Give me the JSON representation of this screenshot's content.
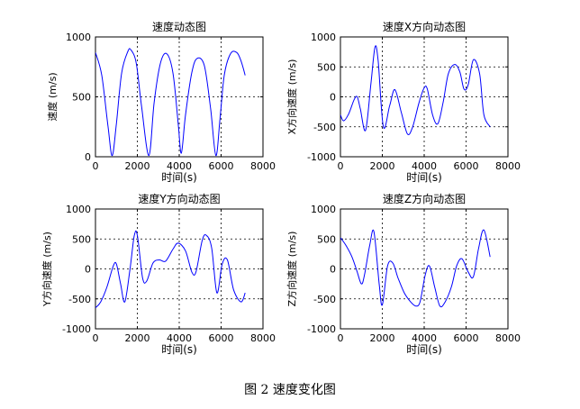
{
  "caption": "图 2  速度变化图",
  "chart_data": [
    {
      "type": "line",
      "title": "速度动态图",
      "xlabel": "时间(s)",
      "ylabel": "速度 (m/s)",
      "xlim": [
        0,
        8000
      ],
      "ylim": [
        0,
        1000
      ],
      "xticks": [
        0,
        2000,
        4000,
        6000,
        8000
      ],
      "yticks": [
        0,
        500,
        1000
      ],
      "grid": true,
      "line_color": "#0000ff",
      "x": [
        0,
        300,
        600,
        800,
        1000,
        1250,
        1550,
        1700,
        1950,
        2200,
        2550,
        2800,
        3100,
        3400,
        3700,
        3950,
        4100,
        4300,
        4600,
        4850,
        5200,
        5500,
        5750,
        5950,
        6150,
        6450,
        6750,
        6950,
        7150
      ],
      "values": [
        870,
        680,
        250,
        10,
        280,
        700,
        880,
        890,
        780,
        420,
        10,
        450,
        780,
        860,
        700,
        280,
        30,
        350,
        700,
        820,
        760,
        400,
        10,
        320,
        680,
        860,
        870,
        800,
        680
      ]
    },
    {
      "type": "line",
      "title": "速度X方向动态图",
      "xlabel": "时间(s)",
      "ylabel": "X方向速度 (m/s)",
      "xlim": [
        0,
        8000
      ],
      "ylim": [
        -1000,
        1000
      ],
      "xticks": [
        0,
        2000,
        4000,
        6000,
        8000
      ],
      "yticks": [
        -1000,
        -500,
        0,
        500,
        1000
      ],
      "grid": true,
      "line_color": "#0000ff",
      "x": [
        0,
        150,
        400,
        650,
        800,
        950,
        1200,
        1450,
        1650,
        1800,
        2050,
        2350,
        2600,
        2900,
        3200,
        3450,
        3750,
        4000,
        4150,
        4400,
        4650,
        4900,
        5150,
        5450,
        5700,
        5900,
        6100,
        6350,
        6650,
        6850,
        7150
      ],
      "values": [
        -300,
        -400,
        -280,
        -50,
        0,
        -200,
        -560,
        200,
        830,
        600,
        -500,
        -150,
        120,
        -250,
        -620,
        -500,
        -100,
        150,
        130,
        -300,
        -450,
        -100,
        380,
        540,
        420,
        130,
        200,
        620,
        380,
        -300,
        -500
      ]
    },
    {
      "type": "line",
      "title": "速度Y方向动态图",
      "xlabel": "时间(s)",
      "ylabel": "Y方向速度 (m/s)",
      "xlim": [
        0,
        8000
      ],
      "ylim": [
        -1000,
        1000
      ],
      "xticks": [
        0,
        2000,
        4000,
        6000,
        8000
      ],
      "yticks": [
        -1000,
        -500,
        0,
        500,
        1000
      ],
      "grid": true,
      "line_color": "#0000ff",
      "x": [
        0,
        250,
        550,
        850,
        1000,
        1200,
        1400,
        1650,
        1850,
        2000,
        2250,
        2450,
        2750,
        3050,
        3350,
        3700,
        3950,
        4300,
        4600,
        4800,
        5100,
        5300,
        5550,
        5800,
        6050,
        6300,
        6600,
        6950,
        7150
      ],
      "values": [
        -650,
        -550,
        -300,
        50,
        80,
        -250,
        -550,
        0,
        550,
        560,
        -150,
        -200,
        100,
        150,
        130,
        330,
        430,
        300,
        -50,
        -50,
        480,
        560,
        350,
        -400,
        80,
        150,
        -350,
        -550,
        -400
      ]
    },
    {
      "type": "line",
      "title": "速度Z方向动态图",
      "xlabel": "时间(s)",
      "ylabel": "Z方向速度 (m/s)",
      "xlim": [
        0,
        8000
      ],
      "ylim": [
        -1000,
        1000
      ],
      "xticks": [
        0,
        2000,
        4000,
        6000,
        8000
      ],
      "yticks": [
        -1000,
        -500,
        0,
        500,
        1000
      ],
      "grid": true,
      "line_color": "#0000ff",
      "x": [
        0,
        250,
        550,
        800,
        1000,
        1150,
        1400,
        1600,
        1850,
        2000,
        2250,
        2500,
        2750,
        3050,
        3350,
        3600,
        3800,
        4050,
        4250,
        4500,
        4750,
        5000,
        5300,
        5550,
        5800,
        6100,
        6350,
        6600,
        6850,
        7150
      ],
      "values": [
        520,
        400,
        200,
        -50,
        -250,
        -100,
        400,
        620,
        -250,
        -600,
        50,
        100,
        -150,
        -400,
        -550,
        -620,
        -550,
        -100,
        50,
        -300,
        -620,
        -550,
        -300,
        50,
        170,
        -50,
        -130,
        350,
        650,
        200
      ]
    }
  ]
}
